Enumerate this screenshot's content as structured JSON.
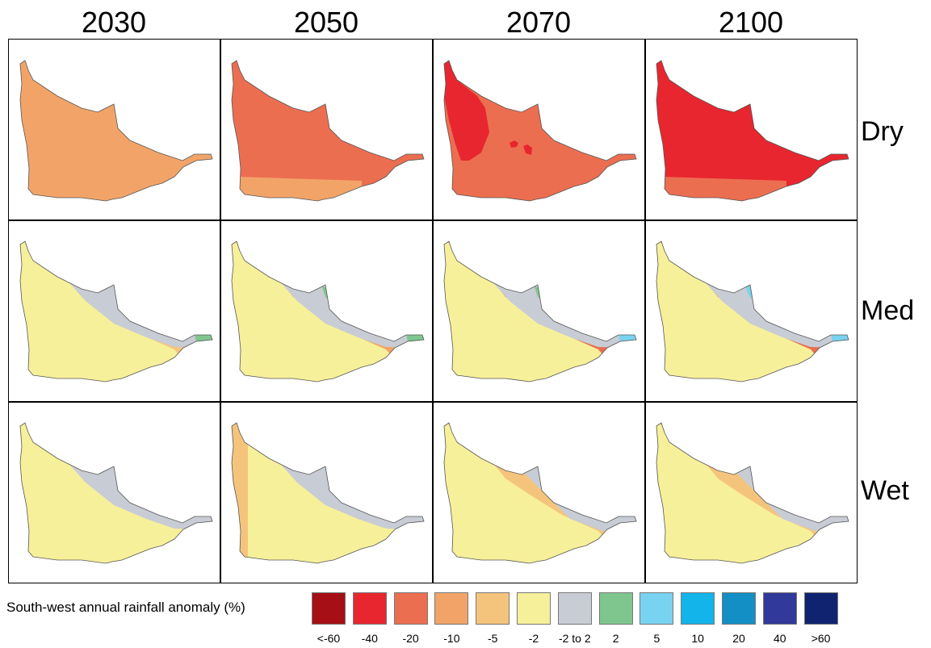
{
  "columns": [
    "2030",
    "2050",
    "2070",
    "2100"
  ],
  "rows": [
    "Dry",
    "Med",
    "Wet"
  ],
  "legend": {
    "title": "South-west annual rainfall anomaly (%)",
    "classes": [
      {
        "label": "<-60",
        "color": "#a50f15"
      },
      {
        "label": "-40",
        "color": "#e8262f"
      },
      {
        "label": "-20",
        "color": "#ec6e50"
      },
      {
        "label": "-10",
        "color": "#f2a468"
      },
      {
        "label": "-5",
        "color": "#f5c47c"
      },
      {
        "label": "-2",
        "color": "#f7f09a"
      },
      {
        "label": "-2 to 2",
        "color": "#c8ccd4"
      },
      {
        "label": "2",
        "color": "#7fc68e"
      },
      {
        "label": "5",
        "color": "#78d3f0"
      },
      {
        "label": "10",
        "color": "#12b4ea"
      },
      {
        "label": "20",
        "color": "#148fc6"
      },
      {
        "label": "40",
        "color": "#31399a"
      },
      {
        "label": ">60",
        "color": "#0f2370"
      }
    ]
  },
  "maps": [
    [
      {
        "base": "-10",
        "zones": []
      },
      {
        "base": "-20",
        "zones": [
          {
            "kind": "south-strip",
            "cls": "-10"
          }
        ]
      },
      {
        "base": "-20",
        "zones": [
          {
            "kind": "northwest-blob",
            "cls": "-40"
          },
          {
            "kind": "spots",
            "cls": "-40"
          }
        ]
      },
      {
        "base": "-40",
        "zones": [
          {
            "kind": "south-strip",
            "cls": "-20"
          }
        ]
      }
    ],
    [
      {
        "base": "-5",
        "zones": [
          {
            "kind": "band-west",
            "cls": "-2"
          },
          {
            "kind": "band-4",
            "cls": "-2"
          },
          {
            "kind": "band-5",
            "cls": "-2 to 2"
          },
          {
            "kind": "tip",
            "cls": "2"
          }
        ]
      },
      {
        "base": "-10",
        "zones": [
          {
            "kind": "band-west",
            "cls": "-5"
          },
          {
            "kind": "band-3",
            "cls": "-5"
          },
          {
            "kind": "band-4",
            "cls": "-2"
          },
          {
            "kind": "band-5",
            "cls": "-2 to 2"
          },
          {
            "kind": "coast",
            "cls": "2"
          },
          {
            "kind": "tip",
            "cls": "2"
          }
        ]
      },
      {
        "base": "-20",
        "zones": [
          {
            "kind": "band-west",
            "cls": "-10"
          },
          {
            "kind": "band-2",
            "cls": "-10"
          },
          {
            "kind": "band-3",
            "cls": "-5"
          },
          {
            "kind": "band-4",
            "cls": "-2"
          },
          {
            "kind": "band-5",
            "cls": "-2 to 2"
          },
          {
            "kind": "coast",
            "cls": "2"
          },
          {
            "kind": "tip",
            "cls": "5"
          }
        ]
      },
      {
        "base": "-20",
        "zones": [
          {
            "kind": "band-west",
            "cls": "-10"
          },
          {
            "kind": "band-2",
            "cls": "-10"
          },
          {
            "kind": "band-3",
            "cls": "-5"
          },
          {
            "kind": "band-4",
            "cls": "-2"
          },
          {
            "kind": "band-5",
            "cls": "-2 to 2"
          },
          {
            "kind": "coast",
            "cls": "2"
          },
          {
            "kind": "coast-tip",
            "cls": "5"
          },
          {
            "kind": "tip",
            "cls": "5"
          }
        ]
      }
    ],
    [
      {
        "base": "-2",
        "zones": [
          {
            "kind": "band-5",
            "cls": "-2 to 2"
          }
        ]
      },
      {
        "base": "-2",
        "zones": [
          {
            "kind": "band-west",
            "cls": "-5"
          },
          {
            "kind": "band-5",
            "cls": "-2 to 2"
          }
        ]
      },
      {
        "base": "-5",
        "zones": [
          {
            "kind": "band-west",
            "cls": "-5"
          },
          {
            "kind": "band-4",
            "cls": "-2"
          },
          {
            "kind": "band-5b",
            "cls": "-2 to 2"
          }
        ]
      },
      {
        "base": "-5",
        "zones": [
          {
            "kind": "band-west",
            "cls": "-10"
          },
          {
            "kind": "band-2",
            "cls": "-10"
          },
          {
            "kind": "band-4",
            "cls": "-2"
          },
          {
            "kind": "band-5b",
            "cls": "-2 to 2"
          }
        ]
      }
    ]
  ]
}
